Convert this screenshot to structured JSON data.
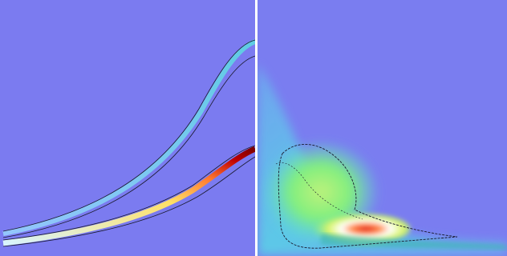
{
  "panels": {
    "left": {
      "background": "#7b7bf0",
      "contour_color": "#1a1a2e",
      "hot_colors": [
        "#ffffff",
        "#ffff66",
        "#ff9933",
        "#e62020",
        "#a00000"
      ],
      "cool_colors": [
        "#9ad8ff",
        "#58e0e0"
      ]
    },
    "right": {
      "background": "#7a7df0",
      "plume_colors": [
        "#6fa8f0",
        "#58d6e6",
        "#7fef7f",
        "#d8f46a",
        "#ffffff",
        "#ff8a4a",
        "#e32626"
      ],
      "contour_color": "#1a1a2e"
    },
    "divider_color": "#ffffff"
  }
}
